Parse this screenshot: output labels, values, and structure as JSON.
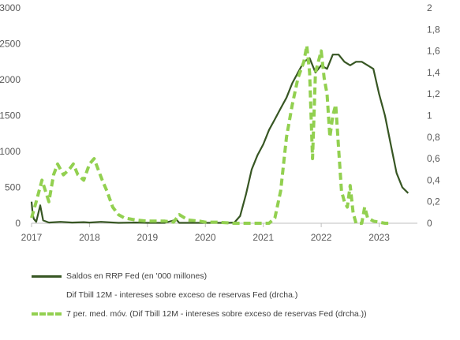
{
  "chart_data": {
    "type": "line",
    "title": "",
    "xlabel": "",
    "ylabel": "",
    "x_ticks": [
      "2017",
      "2018",
      "2019",
      "2020",
      "2021",
      "2022",
      "2023"
    ],
    "y_left": {
      "ylim": [
        0,
        3000
      ],
      "ticks": [
        "0",
        "500",
        "1000",
        "1500",
        "2000",
        "2500",
        "3000"
      ]
    },
    "y_right": {
      "ylim": [
        0,
        2
      ],
      "ticks": [
        "0",
        "0,2",
        "0,4",
        "0,6",
        "0,8",
        "1",
        "1,2",
        "1,4",
        "1,6",
        "1,8",
        "2"
      ]
    },
    "grid": false,
    "legend_position": "bottom",
    "colors": {
      "rrp": "#375623",
      "ma": "#92d050",
      "axis": "#bfbfbf",
      "text": "#595959"
    },
    "series": [
      {
        "name": "Saldos en RRP Fed (en '000 millones)",
        "axis": "left",
        "style": "solid",
        "x": [
          2017.0,
          2017.02,
          2017.04,
          2017.08,
          2017.15,
          2017.2,
          2017.3,
          2017.5,
          2017.7,
          2017.9,
          2018.0,
          2018.2,
          2018.5,
          2018.8,
          2019.0,
          2019.3,
          2019.5,
          2019.55,
          2019.8,
          2020.0,
          2020.2,
          2020.4,
          2020.5,
          2020.6,
          2020.7,
          2020.8,
          2020.9,
          2021.0,
          2021.1,
          2021.2,
          2021.3,
          2021.4,
          2021.5,
          2021.6,
          2021.7,
          2021.8,
          2021.9,
          2022.0,
          2022.1,
          2022.2,
          2022.3,
          2022.4,
          2022.5,
          2022.6,
          2022.7,
          2022.8,
          2022.9,
          2023.0,
          2023.1,
          2023.2,
          2023.3,
          2023.4,
          2023.5
        ],
        "values": [
          300,
          120,
          60,
          20,
          250,
          40,
          10,
          20,
          10,
          15,
          10,
          20,
          5,
          10,
          5,
          5,
          50,
          5,
          5,
          5,
          5,
          5,
          10,
          100,
          400,
          750,
          950,
          1100,
          1300,
          1450,
          1600,
          1750,
          1950,
          2100,
          2250,
          2300,
          2100,
          2200,
          2150,
          2350,
          2350,
          2250,
          2200,
          2250,
          2250,
          2200,
          2150,
          1800,
          1500,
          1100,
          700,
          500,
          420
        ]
      },
      {
        "name": "Dif Tbill 12M - intereses sobre exceso de reservas Fed (drcha.)",
        "axis": "right",
        "style": "none",
        "x": [],
        "values": []
      },
      {
        "name": "7 per. med. móv. (Dif Tbill 12M - intereses sobre exceso de reservas Fed (drcha.))",
        "axis": "right",
        "style": "dashed",
        "x": [
          2017.0,
          2017.08,
          2017.18,
          2017.3,
          2017.38,
          2017.45,
          2017.55,
          2017.65,
          2017.72,
          2017.8,
          2017.9,
          2018.0,
          2018.08,
          2018.15,
          2018.22,
          2018.3,
          2018.4,
          2018.5,
          2018.6,
          2018.8,
          2019.0,
          2019.3,
          2019.45,
          2019.55,
          2019.7,
          2019.9,
          2020.0,
          2020.2,
          2020.5,
          2020.8,
          2021.0,
          2021.1,
          2021.2,
          2021.3,
          2021.4,
          2021.5,
          2021.6,
          2021.7,
          2021.75,
          2021.8,
          2021.85,
          2021.9,
          2022.0,
          2022.05,
          2022.1,
          2022.15,
          2022.2,
          2022.25,
          2022.3,
          2022.35,
          2022.4,
          2022.45,
          2022.5,
          2022.55,
          2022.6,
          2022.7,
          2022.75,
          2022.8,
          2022.9,
          2023.0,
          2023.1,
          2023.2
        ],
        "values": [
          0.05,
          0.2,
          0.4,
          0.2,
          0.45,
          0.55,
          0.45,
          0.5,
          0.55,
          0.45,
          0.4,
          0.55,
          0.6,
          0.5,
          0.4,
          0.3,
          0.15,
          0.08,
          0.05,
          0.03,
          0.02,
          0.02,
          0.01,
          0.08,
          0.03,
          0.02,
          0.01,
          0.01,
          0.0,
          0.0,
          0.0,
          0.0,
          0.05,
          0.3,
          0.8,
          1.1,
          1.35,
          1.5,
          1.65,
          1.4,
          0.6,
          1.4,
          1.6,
          1.35,
          1.2,
          0.8,
          1.0,
          1.1,
          0.7,
          0.3,
          0.2,
          0.15,
          0.35,
          0.1,
          0.0,
          0.0,
          0.15,
          0.05,
          0.02,
          0.01,
          0.0,
          0.0
        ]
      }
    ]
  }
}
